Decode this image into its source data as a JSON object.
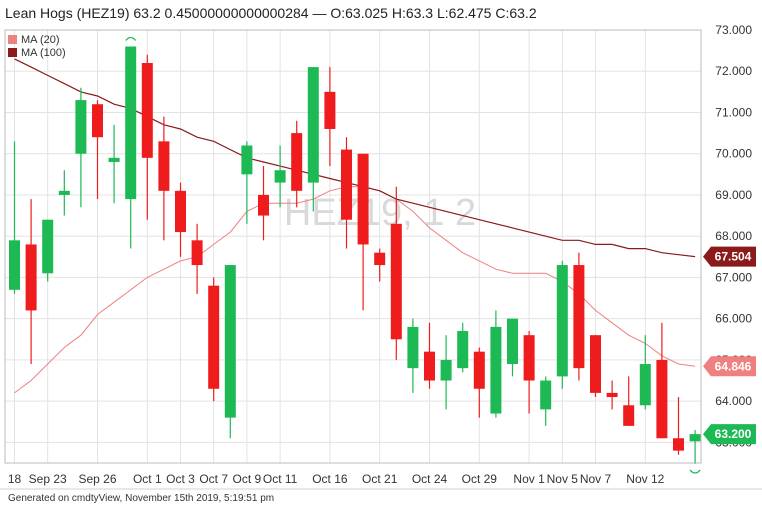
{
  "header": {
    "title": "Lean Hogs (HEZ19) 63.2 0.45000000000000284 — O:63.025 H:63.3 L:62.475 C:63.2"
  },
  "footer": {
    "text": "Generated on cmdtyView, November 15th 2019, 5:19:51 pm"
  },
  "colors": {
    "up": "#1db954",
    "down": "#ee1c1c",
    "ma20": "#f08080",
    "ma100": "#8b1a1a",
    "grid": "#e3e3e3",
    "watermark": "#d9d9d9"
  },
  "chart_data": {
    "type": "candlestick",
    "watermark": "HEZ19, 1 2",
    "ylim": [
      62.5,
      73.0
    ],
    "y_ticks": [
      "73.000",
      "72.000",
      "71.000",
      "70.000",
      "69.000",
      "68.000",
      "67.000",
      "66.000",
      "65.000",
      "64.000",
      "63.000"
    ],
    "x_ticks": [
      {
        "label": "18",
        "index": 0
      },
      {
        "label": "Sep 23",
        "index": 2
      },
      {
        "label": "Sep 26",
        "index": 5
      },
      {
        "label": "Oct 1",
        "index": 8
      },
      {
        "label": "Oct 3",
        "index": 10
      },
      {
        "label": "Oct 7",
        "index": 12
      },
      {
        "label": "Oct 9",
        "index": 14
      },
      {
        "label": "Oct 11",
        "index": 16
      },
      {
        "label": "Oct 16",
        "index": 19
      },
      {
        "label": "Oct 21",
        "index": 22
      },
      {
        "label": "Oct 24",
        "index": 25
      },
      {
        "label": "Oct 29",
        "index": 28
      },
      {
        "label": "Nov 1",
        "index": 31
      },
      {
        "label": "Nov 5",
        "index": 33
      },
      {
        "label": "Nov 7",
        "index": 35
      },
      {
        "label": "Nov 12",
        "index": 38
      }
    ],
    "candles": [
      {
        "o": 66.7,
        "h": 70.3,
        "l": 66.6,
        "c": 67.9
      },
      {
        "o": 67.8,
        "h": 68.9,
        "l": 64.9,
        "c": 66.2
      },
      {
        "o": 67.1,
        "h": 68.4,
        "l": 66.9,
        "c": 68.4
      },
      {
        "o": 69.0,
        "h": 69.6,
        "l": 68.5,
        "c": 69.1
      },
      {
        "o": 70.0,
        "h": 71.6,
        "l": 68.7,
        "c": 71.3
      },
      {
        "o": 71.2,
        "h": 71.3,
        "l": 68.9,
        "c": 70.4
      },
      {
        "o": 69.8,
        "h": 70.7,
        "l": 68.8,
        "c": 69.9
      },
      {
        "o": 68.9,
        "h": 72.6,
        "l": 67.7,
        "c": 72.6
      },
      {
        "o": 72.2,
        "h": 72.4,
        "l": 68.4,
        "c": 69.9
      },
      {
        "o": 70.3,
        "h": 70.9,
        "l": 67.9,
        "c": 69.1
      },
      {
        "o": 69.1,
        "h": 69.3,
        "l": 67.5,
        "c": 68.1
      },
      {
        "o": 67.9,
        "h": 68.3,
        "l": 66.6,
        "c": 67.3
      },
      {
        "o": 66.8,
        "h": 67.0,
        "l": 64.0,
        "c": 64.3
      },
      {
        "o": 63.6,
        "h": 67.3,
        "l": 63.1,
        "c": 67.3
      },
      {
        "o": 69.5,
        "h": 70.3,
        "l": 68.3,
        "c": 70.2
      },
      {
        "o": 69.0,
        "h": 69.7,
        "l": 67.9,
        "c": 68.5
      },
      {
        "o": 69.3,
        "h": 70.2,
        "l": 68.7,
        "c": 69.6
      },
      {
        "o": 70.5,
        "h": 70.8,
        "l": 68.7,
        "c": 69.1
      },
      {
        "o": 69.3,
        "h": 72.1,
        "l": 68.6,
        "c": 72.1
      },
      {
        "o": 71.5,
        "h": 72.1,
        "l": 69.7,
        "c": 70.6
      },
      {
        "o": 70.1,
        "h": 70.4,
        "l": 67.7,
        "c": 68.4
      },
      {
        "o": 70.0,
        "h": 70.0,
        "l": 66.2,
        "c": 67.8
      },
      {
        "o": 67.6,
        "h": 67.7,
        "l": 66.9,
        "c": 67.3
      },
      {
        "o": 68.3,
        "h": 69.2,
        "l": 65.0,
        "c": 65.5
      },
      {
        "o": 64.8,
        "h": 66.0,
        "l": 64.2,
        "c": 65.8
      },
      {
        "o": 65.2,
        "h": 65.9,
        "l": 64.3,
        "c": 64.5
      },
      {
        "o": 64.5,
        "h": 65.6,
        "l": 63.8,
        "c": 65.0
      },
      {
        "o": 64.8,
        "h": 65.9,
        "l": 64.7,
        "c": 65.7
      },
      {
        "o": 65.2,
        "h": 65.3,
        "l": 63.6,
        "c": 64.3
      },
      {
        "o": 63.7,
        "h": 66.2,
        "l": 63.6,
        "c": 65.8
      },
      {
        "o": 64.9,
        "h": 66.0,
        "l": 64.6,
        "c": 66.0
      },
      {
        "o": 65.6,
        "h": 65.7,
        "l": 63.7,
        "c": 64.5
      },
      {
        "o": 63.8,
        "h": 64.6,
        "l": 63.4,
        "c": 64.5
      },
      {
        "o": 64.6,
        "h": 67.4,
        "l": 64.3,
        "c": 67.3
      },
      {
        "o": 67.3,
        "h": 67.6,
        "l": 64.5,
        "c": 64.8
      },
      {
        "o": 65.6,
        "h": 65.6,
        "l": 64.1,
        "c": 64.2
      },
      {
        "o": 64.2,
        "h": 64.5,
        "l": 63.8,
        "c": 64.1
      },
      {
        "o": 63.9,
        "h": 64.6,
        "l": 63.4,
        "c": 63.4
      },
      {
        "o": 63.9,
        "h": 65.6,
        "l": 63.8,
        "c": 64.9
      },
      {
        "o": 65.0,
        "h": 65.9,
        "l": 63.1,
        "c": 63.1
      },
      {
        "o": 63.1,
        "h": 64.1,
        "l": 62.7,
        "c": 62.8
      },
      {
        "o": 63.025,
        "h": 63.3,
        "l": 62.475,
        "c": 63.2
      }
    ],
    "series": [
      {
        "name": "MA (20)",
        "color": "#f08080",
        "values": [
          64.2,
          64.5,
          64.9,
          65.3,
          65.6,
          66.1,
          66.4,
          66.7,
          67.0,
          67.2,
          67.4,
          67.5,
          67.8,
          68.1,
          68.6,
          68.8,
          68.8,
          68.8,
          68.9,
          69.1,
          69.2,
          69.2,
          69.1,
          68.9,
          68.6,
          68.2,
          67.9,
          67.6,
          67.4,
          67.2,
          67.1,
          67.1,
          67.1,
          66.9,
          66.6,
          66.2,
          65.9,
          65.6,
          65.4,
          65.1,
          64.9,
          64.846
        ]
      },
      {
        "name": "MA (100)",
        "color": "#8b1a1a",
        "values": [
          72.3,
          72.1,
          71.9,
          71.7,
          71.5,
          71.4,
          71.2,
          71.1,
          70.9,
          70.7,
          70.6,
          70.4,
          70.3,
          70.1,
          69.9,
          69.8,
          69.7,
          69.6,
          69.5,
          69.4,
          69.3,
          69.2,
          69.1,
          68.9,
          68.8,
          68.7,
          68.6,
          68.5,
          68.4,
          68.3,
          68.2,
          68.1,
          68.0,
          67.9,
          67.9,
          67.8,
          67.8,
          67.7,
          67.7,
          67.6,
          67.55,
          67.504
        ]
      }
    ],
    "value_tags": [
      {
        "label": "67.504",
        "value": 67.504,
        "color": "#8b1a1a"
      },
      {
        "label": "64.846",
        "value": 64.846,
        "color": "#f08080"
      },
      {
        "label": "63.200",
        "value": 63.2,
        "color": "#1db954"
      }
    ]
  }
}
